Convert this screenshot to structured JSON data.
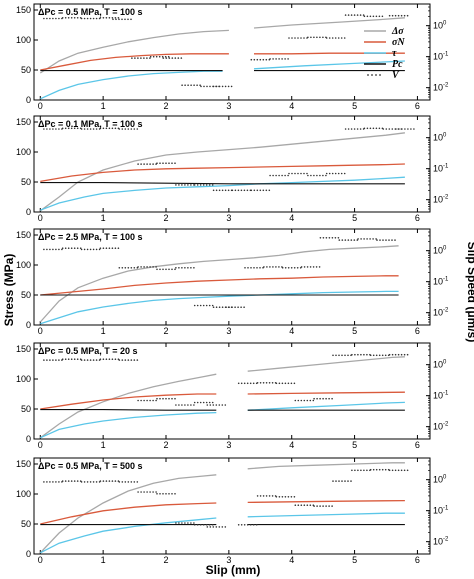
{
  "figure": {
    "y_label_left": "Stress (MPa)",
    "y_label_right": "Slip Speed (μm/s)",
    "x_label": "Slip (mm)"
  },
  "legend": [
    {
      "symbol": "Δσ",
      "color": "#a8a8a8"
    },
    {
      "symbol": "σN",
      "color": "#d95a3c"
    },
    {
      "symbol": "τ",
      "color": "#5bc6e8"
    },
    {
      "symbol": "Pc",
      "color": "#111111"
    },
    {
      "symbol": "V",
      "color": "#333333"
    }
  ],
  "chart_data": [
    {
      "type": "line",
      "title": "ΔPc = 0.5 MPa, T = 100 s",
      "xlim": [
        -0.1,
        6.2
      ],
      "ylim": [
        0,
        160
      ],
      "x_ticks": [
        "0",
        "1",
        "2",
        "3",
        "4",
        "5",
        "6"
      ],
      "y_ticks": [
        "0",
        "50",
        "100",
        "150"
      ],
      "y2_log": true,
      "y2lim": [
        0.004,
        5
      ],
      "y2_ticks": [
        "10^0",
        "10^-1",
        "10^-2"
      ],
      "gap": [
        3.0,
        3.4
      ],
      "series": [
        {
          "name": "Δσ",
          "color": "#a8a8a8",
          "x": [
            0,
            0.3,
            0.6,
            1.0,
            1.4,
            1.8,
            2.2,
            2.6,
            3.0,
            3.4,
            4.0,
            4.8,
            5.4,
            5.8
          ],
          "y": [
            45,
            65,
            78,
            88,
            97,
            104,
            110,
            114,
            116,
            120,
            125,
            130,
            134,
            137
          ]
        },
        {
          "name": "σN",
          "color": "#d95a3c",
          "x": [
            0,
            0.4,
            0.8,
            1.2,
            1.6,
            2.0,
            2.4,
            2.8,
            3.0,
            3.4,
            4.0,
            4.6,
            5.2,
            5.8
          ],
          "y": [
            50,
            58,
            66,
            71,
            74,
            76,
            77,
            77,
            77,
            77,
            77,
            78,
            78,
            78
          ]
        },
        {
          "name": "τ",
          "color": "#5bc6e8",
          "x": [
            0,
            0.3,
            0.6,
            1.0,
            1.4,
            1.8,
            2.2,
            2.6,
            2.9,
            3.4,
            4.2,
            5.0,
            5.8
          ],
          "y": [
            2,
            16,
            26,
            34,
            40,
            44,
            46,
            48,
            48,
            52,
            57,
            61,
            65
          ]
        },
        {
          "name": "Pc",
          "color": "#111111",
          "x": [
            0,
            1.0,
            2.0,
            2.9,
            3.4,
            4.2,
            5.0,
            5.8
          ],
          "y": [
            49,
            49,
            49,
            49,
            49,
            49,
            49,
            49
          ]
        }
      ],
      "speed": {
        "x": [
          0.2,
          0.5,
          0.8,
          1.1,
          1.3,
          1.6,
          1.9,
          2.1,
          2.4,
          2.7,
          2.9,
          3.5,
          3.8,
          4.1,
          4.4,
          4.7,
          5.0,
          5.3,
          5.7
        ],
        "v": [
          1.7,
          1.8,
          1.7,
          1.8,
          1.6,
          0.09,
          0.1,
          0.09,
          0.012,
          0.011,
          0.011,
          0.08,
          0.085,
          0.4,
          0.42,
          0.4,
          2.2,
          2.0,
          2.1
        ]
      }
    },
    {
      "type": "line",
      "title": "ΔPc = 0.1 MPa, T = 100 s",
      "xlim": [
        -0.1,
        6.2
      ],
      "ylim": [
        0,
        160
      ],
      "x_ticks": [
        "0",
        "1",
        "2",
        "3",
        "4",
        "5",
        "6"
      ],
      "y_ticks": [
        "0",
        "50",
        "100",
        "150"
      ],
      "y2_log": true,
      "y2lim": [
        0.004,
        5
      ],
      "y2_ticks": [
        "10^0",
        "10^-1",
        "10^-2"
      ],
      "gap": [],
      "series": [
        {
          "name": "Δσ",
          "color": "#a8a8a8",
          "x": [
            0,
            0.3,
            0.6,
            1.0,
            1.5,
            2.0,
            2.5,
            3.0,
            3.5,
            4.0,
            4.5,
            5.0,
            5.5,
            5.8
          ],
          "y": [
            2,
            25,
            50,
            70,
            85,
            95,
            100,
            104,
            108,
            113,
            118,
            123,
            128,
            132
          ]
        },
        {
          "name": "σN",
          "color": "#d95a3c",
          "x": [
            0,
            0.5,
            1.0,
            1.5,
            2.0,
            2.5,
            3.0,
            3.5,
            4.0,
            4.5,
            5.0,
            5.5,
            5.8
          ],
          "y": [
            51,
            60,
            66,
            70,
            72,
            73,
            74,
            75,
            76,
            77,
            78,
            79,
            80
          ]
        },
        {
          "name": "τ",
          "color": "#5bc6e8",
          "x": [
            0,
            0.3,
            0.7,
            1.0,
            1.5,
            2.0,
            2.5,
            3.0,
            3.5,
            4.0,
            4.5,
            5.0,
            5.5,
            5.8
          ],
          "y": [
            3,
            15,
            25,
            31,
            36,
            40,
            42,
            44,
            47,
            49,
            51,
            53,
            56,
            58
          ]
        },
        {
          "name": "Pc",
          "color": "#111111",
          "x": [
            0,
            1.0,
            2.0,
            3.0,
            4.0,
            5.0,
            5.8
          ],
          "y": [
            49,
            49,
            48,
            47,
            47,
            47,
            47
          ]
        }
      ],
      "speed": {
        "x": [
          0.2,
          0.5,
          0.8,
          1.1,
          1.4,
          1.7,
          2.0,
          2.3,
          2.6,
          2.9,
          3.2,
          3.5,
          3.8,
          4.1,
          4.4,
          4.7,
          5.0,
          5.3,
          5.6,
          5.8
        ],
        "v": [
          1.9,
          2.0,
          1.9,
          2.0,
          1.9,
          0.14,
          0.15,
          0.03,
          0.03,
          0.02,
          0.02,
          0.02,
          0.06,
          0.07,
          0.06,
          0.07,
          1.9,
          2.0,
          1.9,
          1.9
        ]
      }
    },
    {
      "type": "line",
      "title": "ΔPc = 2.5 MPa, T = 100 s",
      "xlim": [
        -0.1,
        6.2
      ],
      "ylim": [
        0,
        160
      ],
      "x_ticks": [
        "0",
        "1",
        "2",
        "3",
        "4",
        "5",
        "6"
      ],
      "y_ticks": [
        "0",
        "50",
        "100",
        "150"
      ],
      "y2_log": true,
      "y2lim": [
        0.004,
        5
      ],
      "y2_ticks": [
        "10^0",
        "10^-1",
        "10^-2"
      ],
      "gap": [],
      "series": [
        {
          "name": "Δσ",
          "color": "#a8a8a8",
          "x": [
            0,
            0.3,
            0.6,
            1.0,
            1.4,
            1.8,
            2.2,
            2.6,
            3.0,
            3.4,
            3.8,
            4.2,
            4.6,
            5.0,
            5.4,
            5.7
          ],
          "y": [
            5,
            40,
            62,
            78,
            90,
            97,
            102,
            106,
            109,
            112,
            116,
            122,
            126,
            128,
            130,
            132
          ]
        },
        {
          "name": "σN",
          "color": "#d95a3c",
          "x": [
            0,
            0.5,
            1.0,
            1.5,
            2.0,
            2.5,
            3.0,
            3.5,
            4.0,
            4.5,
            5.0,
            5.5,
            5.7
          ],
          "y": [
            50,
            55,
            60,
            66,
            70,
            73,
            75,
            77,
            78,
            80,
            81,
            82,
            82
          ]
        },
        {
          "name": "τ",
          "color": "#5bc6e8",
          "x": [
            0,
            0.3,
            0.6,
            1.0,
            1.4,
            1.8,
            2.2,
            2.6,
            3.0,
            3.5,
            4.0,
            4.5,
            5.0,
            5.5,
            5.7
          ],
          "y": [
            2,
            12,
            22,
            30,
            36,
            41,
            44,
            46,
            48,
            50,
            52,
            54,
            55,
            56,
            56
          ]
        },
        {
          "name": "Pc",
          "color": "#111111",
          "x": [
            0,
            1.0,
            2.0,
            3.0,
            4.0,
            5.0,
            5.7
          ],
          "y": [
            50,
            50,
            50,
            50,
            50,
            50,
            50
          ]
        }
      ],
      "speed": {
        "x": [
          0.2,
          0.5,
          0.8,
          1.1,
          1.4,
          1.7,
          2.0,
          2.3,
          2.6,
          2.9,
          3.1,
          3.4,
          3.7,
          4.0,
          4.3,
          4.6,
          4.9,
          5.2,
          5.5
        ],
        "v": [
          1.1,
          1.2,
          1.1,
          1.2,
          0.28,
          0.3,
          0.25,
          0.28,
          0.017,
          0.015,
          0.015,
          0.28,
          0.3,
          0.28,
          0.3,
          2.6,
          2.2,
          2.4,
          2.2
        ]
      }
    },
    {
      "type": "line",
      "title": "ΔPc = 0.5 MPa, T = 20 s",
      "xlim": [
        -0.1,
        6.2
      ],
      "ylim": [
        0,
        160
      ],
      "x_ticks": [
        "0",
        "1",
        "2",
        "3",
        "4",
        "5",
        "6"
      ],
      "y_ticks": [
        "0",
        "50",
        "100",
        "150"
      ],
      "y2_log": true,
      "y2lim": [
        0.004,
        5
      ],
      "y2_ticks": [
        "10^0",
        "10^-1",
        "10^-2"
      ],
      "gap": [
        2.8,
        3.3
      ],
      "series": [
        {
          "name": "Δσ",
          "color": "#a8a8a8",
          "x": [
            0,
            0.3,
            0.6,
            1.0,
            1.4,
            1.8,
            2.2,
            2.6,
            2.8,
            3.3,
            3.8,
            4.4,
            5.0,
            5.6,
            5.8
          ],
          "y": [
            2,
            25,
            45,
            62,
            76,
            87,
            96,
            104,
            108,
            113,
            118,
            124,
            130,
            136,
            137
          ]
        },
        {
          "name": "σN",
          "color": "#d95a3c",
          "x": [
            0,
            0.5,
            1.0,
            1.5,
            2.0,
            2.5,
            2.8,
            3.3,
            4.0,
            4.8,
            5.8
          ],
          "y": [
            50,
            58,
            65,
            70,
            73,
            75,
            75,
            75,
            76,
            77,
            78
          ]
        },
        {
          "name": "τ",
          "color": "#5bc6e8",
          "x": [
            0,
            0.3,
            0.7,
            1.0,
            1.5,
            2.0,
            2.5,
            2.8,
            3.3,
            4.0,
            4.8,
            5.5,
            5.8
          ],
          "y": [
            2,
            16,
            25,
            30,
            36,
            40,
            43,
            44,
            48,
            52,
            56,
            60,
            61
          ]
        },
        {
          "name": "Pc",
          "color": "#111111",
          "x": [
            0,
            1.0,
            2.0,
            2.8,
            3.3,
            4.5,
            5.8
          ],
          "y": [
            49,
            49,
            48,
            48,
            48,
            48,
            48
          ]
        }
      ],
      "speed": {
        "x": [
          0.2,
          0.5,
          0.8,
          1.1,
          1.4,
          1.7,
          2.0,
          2.3,
          2.6,
          2.8,
          3.3,
          3.6,
          3.9,
          4.2,
          4.5,
          4.8,
          5.1,
          5.4,
          5.7
        ],
        "v": [
          1.4,
          1.5,
          1.4,
          1.5,
          1.4,
          0.07,
          0.08,
          0.05,
          0.06,
          0.05,
          0.25,
          0.26,
          0.25,
          0.07,
          0.08,
          2.0,
          2.1,
          2.0,
          2.1
        ]
      }
    },
    {
      "type": "line",
      "title": "ΔPc = 0.5 MPa, T = 500 s",
      "xlim": [
        -0.1,
        6.2
      ],
      "ylim": [
        0,
        160
      ],
      "x_ticks": [
        "0",
        "1",
        "2",
        "3",
        "4",
        "5",
        "6"
      ],
      "y_ticks": [
        "0",
        "50",
        "100",
        "150"
      ],
      "y2_log": true,
      "y2lim": [
        0.004,
        5
      ],
      "y2_ticks": [
        "10^0",
        "10^-1",
        "10^-2"
      ],
      "gap": [
        2.8,
        3.3
      ],
      "series": [
        {
          "name": "Δσ",
          "color": "#a8a8a8",
          "x": [
            0,
            0.3,
            0.6,
            1.0,
            1.4,
            1.8,
            2.2,
            2.6,
            2.8,
            3.3,
            3.8,
            4.4,
            5.0,
            5.6,
            5.8
          ],
          "y": [
            2,
            35,
            60,
            85,
            105,
            118,
            126,
            130,
            132,
            142,
            146,
            148,
            150,
            152,
            152
          ]
        },
        {
          "name": "σN",
          "color": "#d95a3c",
          "x": [
            0,
            0.5,
            1.0,
            1.5,
            2.0,
            2.5,
            2.8,
            3.3,
            4.0,
            4.8,
            5.8
          ],
          "y": [
            50,
            62,
            72,
            78,
            82,
            84,
            85,
            86,
            87,
            88,
            89
          ]
        },
        {
          "name": "τ",
          "color": "#5bc6e8",
          "x": [
            0,
            0.3,
            0.7,
            1.0,
            1.5,
            2.0,
            2.5,
            2.8,
            3.3,
            4.0,
            4.8,
            5.5,
            5.8
          ],
          "y": [
            2,
            18,
            30,
            38,
            46,
            52,
            57,
            60,
            62,
            64,
            66,
            68,
            68
          ]
        },
        {
          "name": "Pc",
          "color": "#111111",
          "x": [
            0,
            1.0,
            2.0,
            2.8,
            3.3,
            4.5,
            5.8
          ],
          "y": [
            49,
            49,
            49,
            49,
            49,
            49,
            49
          ]
        }
      ],
      "speed": {
        "x": [
          0.2,
          0.5,
          0.8,
          1.1,
          1.4,
          1.7,
          2.0,
          2.3,
          2.6,
          2.8,
          3.3,
          3.6,
          3.9,
          4.2,
          4.5,
          4.8,
          5.1,
          5.4,
          5.7
        ],
        "v": [
          0.85,
          0.9,
          0.85,
          0.9,
          0.85,
          0.4,
          0.35,
          0.04,
          0.035,
          0.03,
          0.035,
          0.3,
          0.28,
          0.15,
          0.14,
          0.9,
          2.0,
          2.1,
          2.0
        ]
      }
    }
  ]
}
